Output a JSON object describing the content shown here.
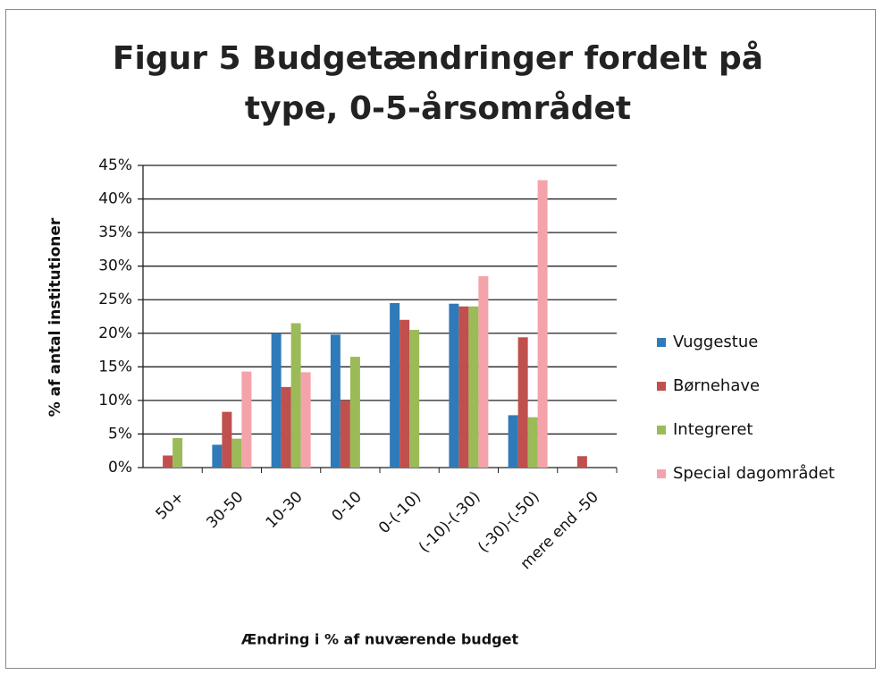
{
  "chart_data": {
    "type": "bar",
    "title": "Figur 5 Budgetændringer fordelt på type, 0-5-årsområdet",
    "xlabel": "Ændring i % af nuværende budget",
    "ylabel": "% af antal institutioner",
    "categories": [
      "50+",
      "30-50",
      "10-30",
      "0-10",
      "0-(-10)",
      "(-10)-(-30)",
      "(-30)-(-50)",
      "mere end -50"
    ],
    "series": [
      {
        "name": "Vuggestue",
        "color": "#2f7ab8",
        "values": [
          0,
          3.4,
          20,
          19.8,
          24.5,
          24.4,
          7.8,
          0
        ]
      },
      {
        "name": "Børnehave",
        "color": "#c0504d",
        "values": [
          1.8,
          8.3,
          12,
          10,
          22,
          24,
          19.4,
          1.7
        ]
      },
      {
        "name": "Integreret",
        "color": "#9bbb59",
        "values": [
          4.4,
          4.3,
          21.5,
          16.5,
          20.5,
          24,
          7.5,
          0
        ]
      },
      {
        "name": "Special dagområdet",
        "color": "#f4a3aa",
        "values": [
          0,
          14.3,
          14.2,
          0,
          0,
          28.5,
          42.8,
          0
        ]
      }
    ],
    "ylim": [
      0,
      45
    ],
    "yticks": [
      {
        "value": 0,
        "label": "0%"
      },
      {
        "value": 5,
        "label": "5%"
      },
      {
        "value": 10,
        "label": "10%"
      },
      {
        "value": 15,
        "label": "15%"
      },
      {
        "value": 20,
        "label": "20%"
      },
      {
        "value": 25,
        "label": "25%"
      },
      {
        "value": 30,
        "label": "30%"
      },
      {
        "value": 35,
        "label": "35%"
      },
      {
        "value": 40,
        "label": "40%"
      },
      {
        "value": 45,
        "label": "45%"
      }
    ],
    "grid": true,
    "legend": "right"
  }
}
